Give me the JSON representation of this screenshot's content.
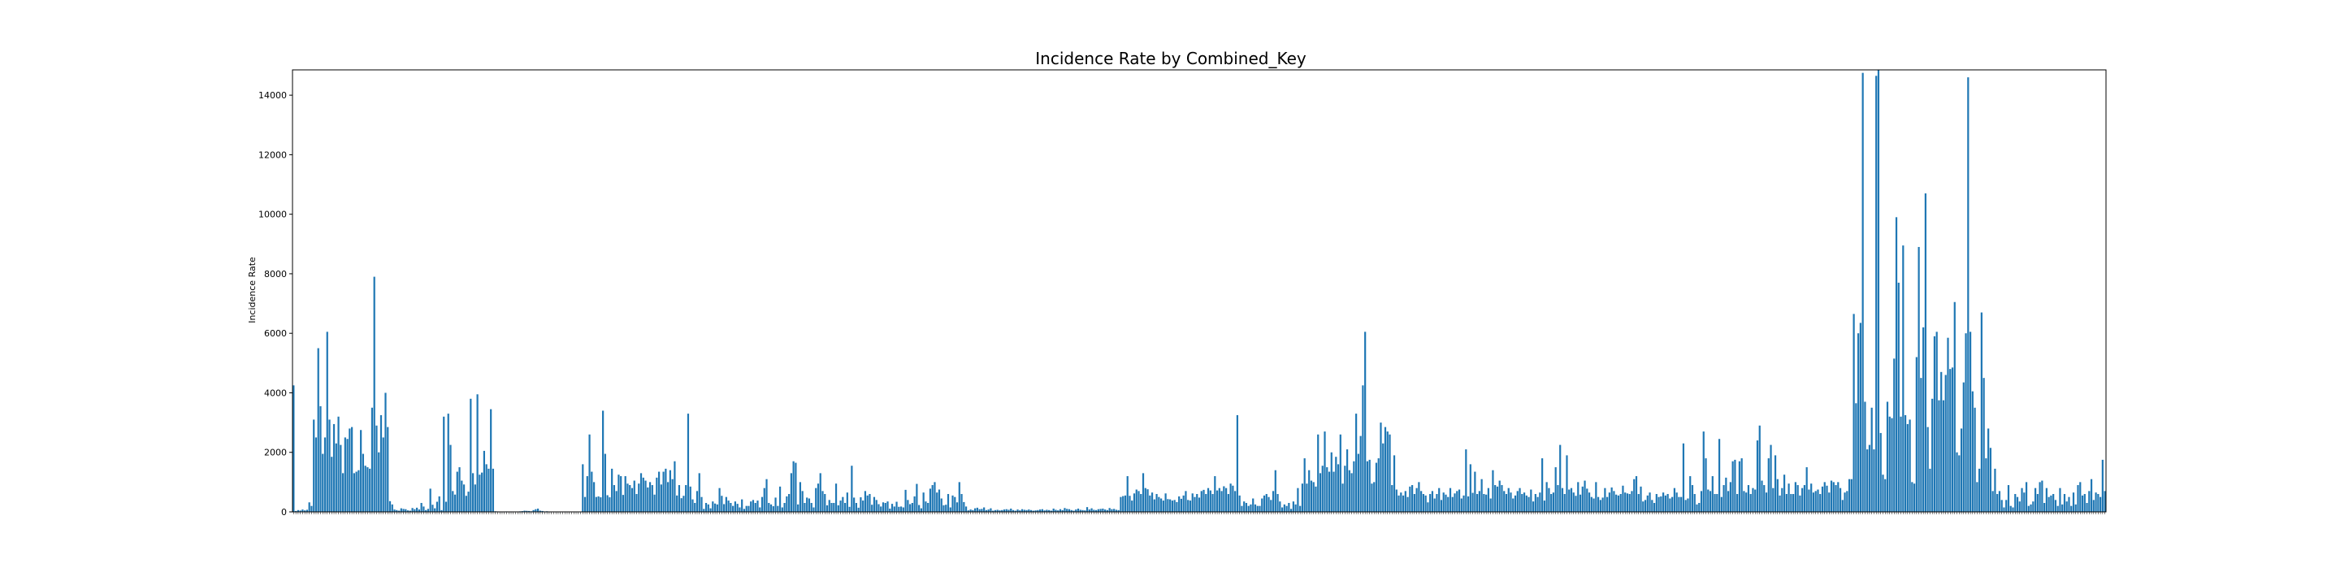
{
  "chart_data": {
    "type": "bar",
    "title": "Incidence Rate by Combined_Key",
    "xlabel": "",
    "ylabel": "Incidence Rate",
    "ylim": [
      0,
      14850
    ],
    "yticks": [
      0,
      2000,
      4000,
      6000,
      8000,
      10000,
      12000,
      14000
    ],
    "ytick_labels": [
      "0",
      "2000",
      "4000",
      "6000",
      "8000",
      "10000",
      "12000",
      "14000"
    ],
    "bar_color": "#1f77b4",
    "grid": false,
    "legend": "none",
    "values": [
      4250,
      30,
      60,
      45,
      80,
      50,
      70,
      320,
      200,
      3100,
      2500,
      5500,
      3550,
      1950,
      2500,
      6050,
      3100,
      1850,
      2950,
      2300,
      3200,
      2250,
      1300,
      2500,
      2450,
      2800,
      2850,
      1300,
      1350,
      1400,
      2750,
      1950,
      1550,
      1500,
      1450,
      3500,
      7900,
      2900,
      2000,
      3250,
      2500,
      4000,
      2850,
      360,
      250,
      80,
      60,
      40,
      120,
      100,
      90,
      50,
      40,
      130,
      90,
      140,
      80,
      300,
      180,
      60,
      100,
      780,
      240,
      120,
      340,
      520,
      60,
      3200,
      340,
      3300,
      2250,
      700,
      580,
      1350,
      1500,
      1050,
      920,
      540,
      680,
      3800,
      1300,
      920,
      3950,
      1250,
      1320,
      2050,
      1600,
      1450,
      3450,
      1450,
      20,
      15,
      10,
      12,
      8,
      15,
      10,
      14,
      12,
      9,
      11,
      18,
      25,
      40,
      35,
      30,
      20,
      60,
      90,
      110,
      40,
      30,
      15,
      20,
      10,
      12,
      8,
      9,
      10,
      11,
      13,
      14,
      12,
      10,
      9,
      8,
      11,
      10,
      12,
      1600,
      500,
      1200,
      2600,
      1350,
      1000,
      500,
      520,
      490,
      3400,
      1950,
      560,
      490,
      1450,
      900,
      700,
      1250,
      1200,
      570,
      1200,
      950,
      900,
      800,
      1050,
      600,
      950,
      1300,
      1150,
      1050,
      820,
      1000,
      900,
      580,
      1150,
      1350,
      920,
      1350,
      1450,
      1000,
      1400,
      1100,
      1700,
      550,
      900,
      460,
      540,
      900,
      3300,
      850,
      420,
      300,
      700,
      1300,
      500,
      100,
      300,
      250,
      120,
      350,
      280,
      250,
      800,
      540,
      260,
      500,
      380,
      300,
      200,
      350,
      270,
      150,
      420,
      100,
      200,
      200,
      350,
      400,
      300,
      380,
      150,
      500,
      800,
      1100,
      300,
      250,
      190,
      480,
      200,
      850,
      150,
      300,
      520,
      600,
      1300,
      1700,
      1650,
      250,
      1000,
      700,
      300,
      480,
      450,
      300,
      150,
      800,
      950,
      1300,
      700,
      600,
      220,
      400,
      300,
      300,
      950,
      220,
      380,
      500,
      300,
      650,
      170,
      1550,
      480,
      300,
      140,
      490,
      380,
      700,
      550,
      600,
      240,
      500,
      400,
      260,
      180,
      320,
      300,
      350,
      110,
      270,
      180,
      340,
      170,
      180,
      150,
      740,
      400,
      260,
      300,
      520,
      940,
      230,
      120,
      650,
      350,
      300,
      780,
      900,
      1000,
      650,
      750,
      450,
      220,
      240,
      600,
      150,
      550,
      500,
      320,
      1000,
      600,
      330,
      180,
      50,
      80,
      60,
      120,
      140,
      90,
      100,
      150,
      60,
      80,
      120,
      40,
      60,
      70,
      50,
      60,
      80,
      90,
      70,
      110,
      60,
      40,
      80,
      50,
      90,
      70,
      60,
      80,
      60,
      40,
      50,
      60,
      80,
      90,
      50,
      70,
      60,
      40,
      110,
      70,
      50,
      90,
      60,
      130,
      100,
      90,
      60,
      40,
      80,
      110,
      70,
      60,
      50,
      160,
      80,
      120,
      70,
      60,
      90,
      100,
      110,
      80,
      60,
      130,
      90,
      100,
      70,
      60,
      500,
      530,
      550,
      1200,
      540,
      380,
      620,
      750,
      700,
      600,
      1300,
      800,
      760,
      550,
      650,
      420,
      600,
      500,
      450,
      380,
      620,
      430,
      420,
      380,
      400,
      330,
      520,
      440,
      550,
      700,
      400,
      380,
      620,
      500,
      600,
      480,
      700,
      740,
      600,
      800,
      720,
      600,
      1200,
      720,
      800,
      700,
      860,
      800,
      600,
      950,
      880,
      700,
      3250,
      550,
      200,
      350,
      300,
      200,
      250,
      450,
      250,
      200,
      200,
      450,
      550,
      600,
      500,
      400,
      700,
      1400,
      600,
      350,
      150,
      250,
      200,
      300,
      100,
      350,
      250,
      800,
      200,
      950,
      1800,
      950,
      1400,
      1050,
      1000,
      850,
      2600,
      1300,
      1550,
      2700,
      1500,
      1350,
      2000,
      1350,
      1850,
      1600,
      2600,
      950,
      1550,
      2100,
      1400,
      1300,
      1700,
      3300,
      1950,
      2550,
      4250,
      6050,
      1700,
      1750,
      950,
      1000,
      1650,
      1800,
      3000,
      2300,
      2850,
      2700,
      2600,
      900,
      1900,
      750,
      550,
      650,
      550,
      700,
      500,
      850,
      900,
      600,
      800,
      1000,
      700,
      600,
      550,
      320,
      600,
      700,
      450,
      600,
      800,
      400,
      650,
      580,
      500,
      800,
      500,
      620,
      700,
      750,
      450,
      550,
      2100,
      520,
      1600,
      640,
      1350,
      600,
      700,
      1100,
      600,
      580,
      800,
      450,
      1400,
      900,
      850,
      1050,
      900,
      700,
      600,
      800,
      650,
      450,
      550,
      700,
      800,
      600,
      650,
      550,
      500,
      750,
      350,
      600,
      500,
      650,
      1800,
      380,
      1000,
      800,
      600,
      650,
      1500,
      900,
      2250,
      800,
      600,
      1900,
      750,
      800,
      650,
      540,
      1000,
      580,
      850,
      1050,
      780,
      650,
      500,
      450,
      1000,
      500,
      400,
      480,
      800,
      500,
      650,
      820,
      700,
      580,
      550,
      600,
      880,
      650,
      620,
      600,
      700,
      1100,
      1200,
      600,
      850,
      350,
      400,
      550,
      650,
      400,
      300,
      600,
      500,
      520,
      650,
      550,
      600,
      450,
      500,
      800,
      650,
      500,
      500,
      2300,
      400,
      450,
      1200,
      900,
      600,
      250,
      300,
      700,
      2700,
      1800,
      750,
      700,
      1200,
      600,
      600,
      2450,
      500,
      900,
      1150,
      700,
      1000,
      1700,
      1750,
      600,
      1700,
      1800,
      700,
      650,
      900,
      600,
      800,
      750,
      2400,
      2900,
      1050,
      900,
      650,
      1800,
      2250,
      800,
      1900,
      1100,
      550,
      800,
      1250,
      600,
      950,
      600,
      600,
      1000,
      900,
      550,
      800,
      900,
      1500,
      750,
      950,
      650,
      700,
      750,
      600,
      850,
      1000,
      880,
      650,
      1050,
      1000,
      900,
      1000,
      800,
      400,
      650,
      700,
      1100,
      1100,
      6650,
      3650,
      6000,
      6350,
      14750,
      3700,
      2100,
      2250,
      3500,
      2100,
      14650,
      14850,
      2650,
      1250,
      1100,
      3700,
      3200,
      3150,
      5150,
      9900,
      7700,
      3200,
      8950,
      3250,
      2950,
      3100,
      1000,
      950,
      5200,
      8900,
      4500,
      6200,
      10700,
      2850,
      1450,
      3800,
      5900,
      6050,
      3750,
      4700,
      3750,
      4600,
      5850,
      4800,
      4850,
      7050,
      2000,
      1900,
      2800,
      4350,
      6000,
      14600,
      6050,
      4050,
      3500,
      1000,
      1450,
      6700,
      4500,
      1800,
      2800,
      2150,
      700,
      1450,
      600,
      700,
      400,
      150,
      400,
      900,
      200,
      150,
      600,
      500,
      350,
      800,
      650,
      1000,
      200,
      250,
      350,
      800,
      600,
      1000,
      1050,
      300,
      800,
      500,
      550,
      600,
      400,
      200,
      800,
      250,
      600,
      350,
      500,
      200,
      650,
      250,
      900,
      1000,
      550,
      600,
      300,
      700,
      1100,
      400,
      650,
      600,
      500,
      1750,
      700
    ]
  }
}
